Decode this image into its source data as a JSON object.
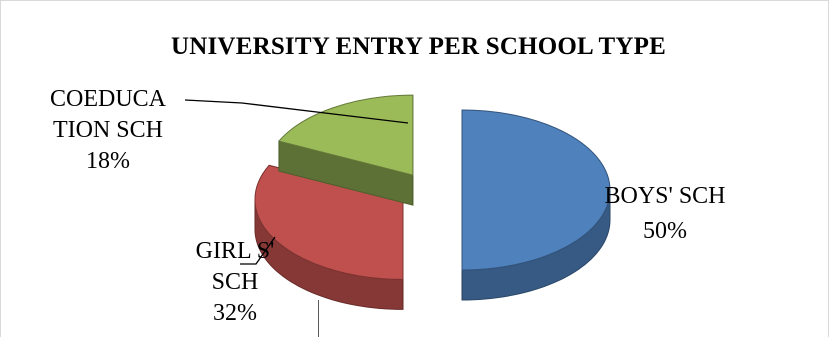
{
  "chart_data": {
    "type": "pie",
    "title": "UNIVERSITY ENTRY PER SCHOOL TYPE",
    "style": "3d-exploded",
    "legend": "none",
    "slices": [
      {
        "label_lines": [
          "BOYS' SCH"
        ],
        "percent_label": "50%",
        "value": 50,
        "color": "#4f81bd"
      },
      {
        "label_lines": [
          "GIRL S'",
          "SCH"
        ],
        "percent_label": "32%",
        "value": 32,
        "color": "#c0504d"
      },
      {
        "label_lines": [
          "COEDUCA",
          "TION SCH"
        ],
        "percent_label": "18%",
        "value": 18,
        "color": "#9bbb59"
      }
    ]
  }
}
